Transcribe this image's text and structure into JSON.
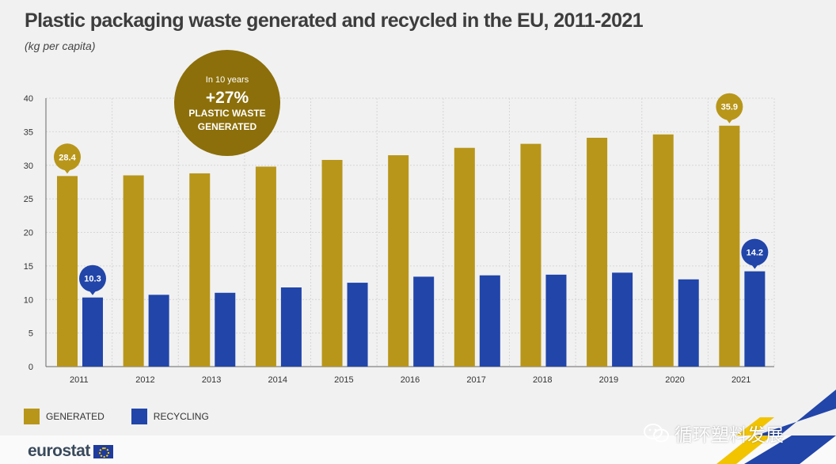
{
  "chart_data": {
    "type": "bar",
    "title": "Plastic packaging waste generated and recycled in the EU, 2011-2021",
    "subtitle": "(kg per capita)",
    "categories": [
      "2011",
      "2012",
      "2013",
      "2014",
      "2015",
      "2016",
      "2017",
      "2018",
      "2019",
      "2020",
      "2021"
    ],
    "series": [
      {
        "name": "GENERATED",
        "color": "#b8961a",
        "values": [
          28.4,
          28.5,
          28.8,
          29.8,
          30.8,
          31.5,
          32.6,
          33.2,
          34.1,
          34.6,
          35.9
        ]
      },
      {
        "name": "RECYCLING",
        "color": "#2145a9",
        "values": [
          10.3,
          10.7,
          11.0,
          11.8,
          12.5,
          13.4,
          13.6,
          13.7,
          14.0,
          13.0,
          14.2
        ]
      }
    ],
    "yticks": [
      0,
      5,
      10,
      15,
      20,
      25,
      30,
      35,
      40
    ],
    "ylim": [
      0,
      40
    ],
    "grid": true,
    "legend_position": "bottom-left",
    "value_labels": [
      {
        "series": 0,
        "index": 0,
        "text": "28.4"
      },
      {
        "series": 1,
        "index": 0,
        "text": "10.3"
      },
      {
        "series": 0,
        "index": 10,
        "text": "35.9"
      },
      {
        "series": 1,
        "index": 10,
        "text": "14.2"
      }
    ],
    "annotation": {
      "line1": "In 10 years",
      "line2": "+27%",
      "line3": "PLASTIC WASTE",
      "line4": "GENERATED",
      "color": "#8c6f0a"
    }
  },
  "legend": {
    "generated": "GENERATED",
    "recycling": "RECYCLING"
  },
  "footer": {
    "logo": "eurostat",
    "watermark": "循环塑料发展"
  },
  "colors": {
    "generated": "#b8961a",
    "recycling": "#2145a9",
    "annotation": "#8c6f0a",
    "background": "#f1f1f1"
  }
}
